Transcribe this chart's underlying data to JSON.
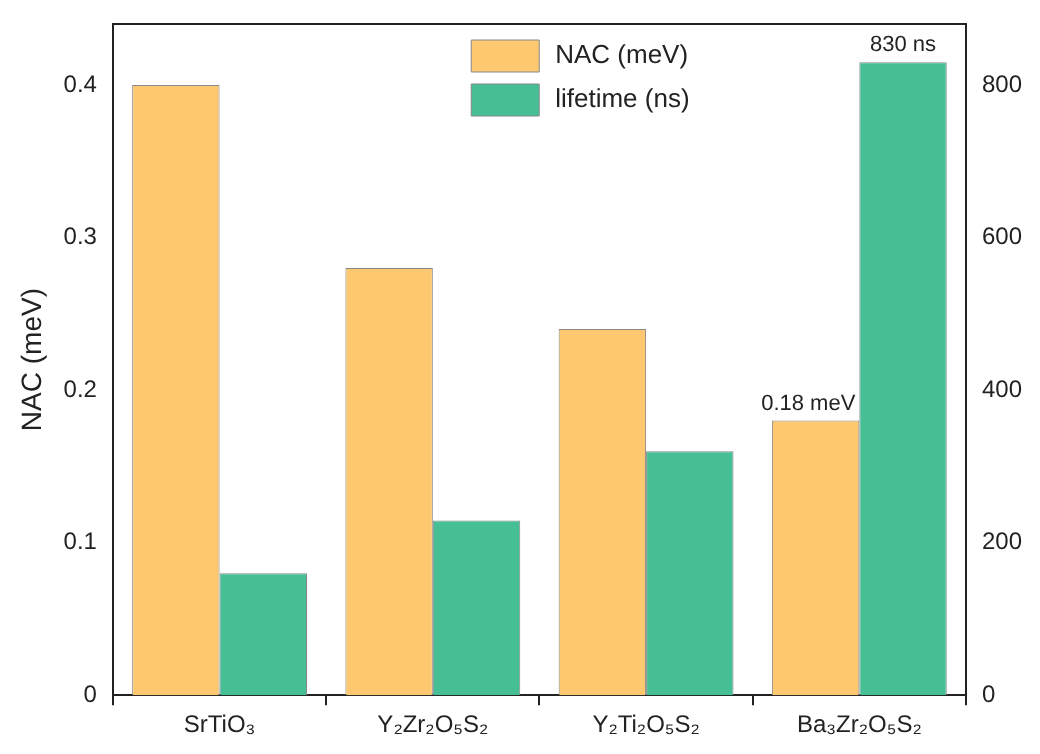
{
  "chart_data": {
    "type": "bar",
    "ylabel": "NAC (meV)",
    "categories": [
      "SrTiO₃",
      "Y₂Zr₂O₅S₂",
      "Y₂Ti₂O₅S₂",
      "Ba₃Zr₂O₅S₂"
    ],
    "series": [
      {
        "name": "NAC (meV)",
        "color": "#fdc870",
        "values": [
          0.4,
          0.28,
          0.24,
          0.18
        ],
        "value_labels": [
          null,
          null,
          null,
          "0.18 meV"
        ]
      },
      {
        "name": "lifetime (ns)",
        "color": "#47bf95",
        "axis": "y2",
        "values": [
          160,
          229,
          320,
          830
        ],
        "value_labels": [
          null,
          null,
          null,
          "830 ns"
        ]
      }
    ],
    "ylim": [
      0,
      0.44
    ],
    "yticks": [
      0,
      0.1,
      0.2,
      0.3,
      0.4
    ],
    "y2lim": [
      0,
      880
    ],
    "y2ticks": [
      0,
      200,
      400,
      600,
      800
    ],
    "grid": false,
    "legend": "top"
  }
}
